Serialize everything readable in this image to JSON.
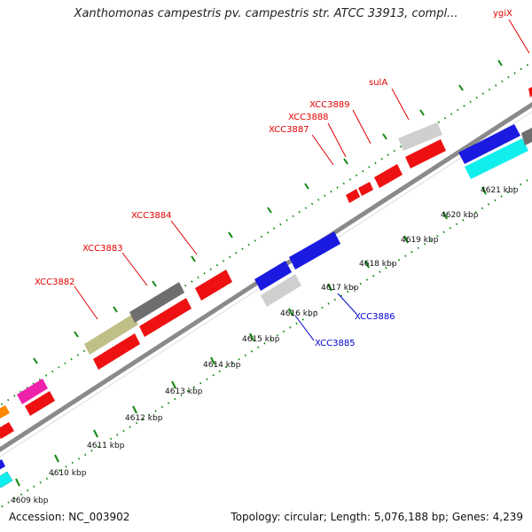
{
  "title": "Xanthomonas campestris pv. campestris str. ATCC 33913, compl...",
  "accession": "Accession: NC_003902",
  "summary": "Topology: circular; Length: 5,076,188 bp; Genes: 4,239",
  "scale_labels": [
    "4609 kbp",
    "4610 kbp",
    "4611 kbp",
    "4612 kbp",
    "4613 kbp",
    "4614 kbp",
    "4615 kbp",
    "4616 kbp",
    "4617 kbp",
    "4618 kbp",
    "4619 kbp",
    "4620 kbp",
    "4621 kbp"
  ],
  "gene_labels": [
    {
      "text": "ygiX",
      "color": "#e00000"
    },
    {
      "text": "sulA",
      "color": "#e00000"
    },
    {
      "text": "XCC3889",
      "color": "#e00000"
    },
    {
      "text": "XCC3888",
      "color": "#e00000"
    },
    {
      "text": "XCC3887",
      "color": "#e00000"
    },
    {
      "text": "XCC3884",
      "color": "#e00000"
    },
    {
      "text": "XCC3883",
      "color": "#e00000"
    },
    {
      "text": "XCC3882",
      "color": "#e00000"
    },
    {
      "text": "XCC3886",
      "color": "#0000cc"
    },
    {
      "text": "XCC3885",
      "color": "#0000cc"
    }
  ],
  "colors": {
    "forward_gene": "#ee1111",
    "reverse_gene": "#1a1ae0",
    "rna": "#c0bf88",
    "gray_gene": "#6e6e6e",
    "light_gene": "#cfcfcf",
    "cyan_gene": "#11eeee",
    "magenta_gene": "#ee22aa",
    "orange_gene": "#ff8800",
    "backbone": "#8a8a8a",
    "tick": "#118811"
  }
}
